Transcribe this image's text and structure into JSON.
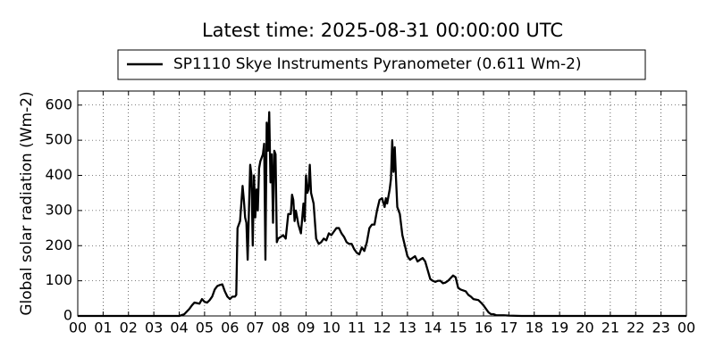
{
  "chart_data": {
    "type": "line",
    "title": "Latest time: 2025-08-31 00:00:00 UTC",
    "ylabel": "Global solar radiation (Wm-2)",
    "grid": true,
    "legend": "upper center",
    "xlim": [
      0,
      24
    ],
    "xticks": [
      {
        "value": 0,
        "label": "00"
      },
      {
        "value": 1,
        "label": "01"
      },
      {
        "value": 2,
        "label": "02"
      },
      {
        "value": 3,
        "label": "03"
      },
      {
        "value": 4,
        "label": "04"
      },
      {
        "value": 5,
        "label": "05"
      },
      {
        "value": 6,
        "label": "06"
      },
      {
        "value": 7,
        "label": "07"
      },
      {
        "value": 8,
        "label": "08"
      },
      {
        "value": 9,
        "label": "09"
      },
      {
        "value": 10,
        "label": "10"
      },
      {
        "value": 11,
        "label": "11"
      },
      {
        "value": 12,
        "label": "12"
      },
      {
        "value": 13,
        "label": "13"
      },
      {
        "value": 14,
        "label": "14"
      },
      {
        "value": 15,
        "label": "15"
      },
      {
        "value": 16,
        "label": "16"
      },
      {
        "value": 17,
        "label": "17"
      },
      {
        "value": 18,
        "label": "18"
      },
      {
        "value": 19,
        "label": "19"
      },
      {
        "value": 20,
        "label": "20"
      },
      {
        "value": 21,
        "label": "21"
      },
      {
        "value": 22,
        "label": "22"
      },
      {
        "value": 23,
        "label": "23"
      },
      {
        "value": 24,
        "label": "00"
      }
    ],
    "ylim": [
      0,
      640
    ],
    "yticks": [
      0,
      100,
      200,
      300,
      400,
      500,
      600
    ],
    "x": [
      0,
      4.0,
      4.2,
      4.4,
      4.5,
      4.6,
      4.8,
      4.9,
      5.0,
      5.1,
      5.2,
      5.3,
      5.4,
      5.5,
      5.6,
      5.7,
      5.8,
      5.9,
      6.0,
      6.1,
      6.2,
      6.25,
      6.3,
      6.4,
      6.45,
      6.5,
      6.55,
      6.6,
      6.65,
      6.7,
      6.75,
      6.8,
      6.85,
      6.9,
      6.95,
      7.0,
      7.05,
      7.1,
      7.15,
      7.2,
      7.3,
      7.35,
      7.4,
      7.45,
      7.5,
      7.55,
      7.6,
      7.65,
      7.7,
      7.75,
      7.8,
      7.85,
      7.9,
      8.0,
      8.1,
      8.2,
      8.3,
      8.4,
      8.45,
      8.5,
      8.55,
      8.6,
      8.7,
      8.8,
      8.9,
      8.95,
      9.0,
      9.05,
      9.1,
      9.15,
      9.2,
      9.3,
      9.4,
      9.5,
      9.6,
      9.7,
      9.8,
      9.9,
      10.0,
      10.1,
      10.2,
      10.3,
      10.4,
      10.5,
      10.6,
      10.7,
      10.8,
      10.9,
      11.0,
      11.1,
      11.2,
      11.3,
      11.4,
      11.5,
      11.6,
      11.7,
      11.8,
      11.9,
      12.0,
      12.1,
      12.15,
      12.2,
      12.3,
      12.35,
      12.4,
      12.45,
      12.5,
      12.55,
      12.6,
      12.7,
      12.8,
      12.9,
      13.0,
      13.1,
      13.2,
      13.3,
      13.4,
      13.5,
      13.6,
      13.7,
      13.8,
      13.9,
      14.0,
      14.1,
      14.2,
      14.3,
      14.4,
      14.5,
      14.6,
      14.8,
      14.9,
      15.0,
      15.1,
      15.3,
      15.4,
      15.5,
      15.6,
      15.8,
      15.9,
      16.0,
      16.1,
      16.2,
      16.3,
      16.4,
      16.5,
      16.8,
      17.0,
      17.5,
      24
    ],
    "series": [
      {
        "name": "SP1110 Skye Instruments Pyranometer (0.611 Wm-2)",
        "color": "#000000",
        "values": [
          0,
          0,
          5,
          20,
          30,
          38,
          35,
          48,
          40,
          38,
          45,
          55,
          75,
          85,
          88,
          90,
          70,
          55,
          48,
          55,
          55,
          60,
          250,
          270,
          320,
          370,
          330,
          280,
          265,
          160,
          300,
          430,
          400,
          200,
          400,
          280,
          360,
          300,
          420,
          440,
          460,
          490,
          160,
          550,
          470,
          580,
          380,
          460,
          265,
          470,
          460,
          210,
          220,
          225,
          230,
          220,
          290,
          290,
          345,
          330,
          270,
          300,
          260,
          235,
          320,
          270,
          400,
          350,
          360,
          430,
          350,
          320,
          220,
          205,
          210,
          220,
          215,
          235,
          230,
          240,
          250,
          250,
          235,
          225,
          210,
          205,
          205,
          190,
          180,
          175,
          195,
          185,
          210,
          250,
          260,
          260,
          300,
          330,
          335,
          310,
          335,
          320,
          360,
          390,
          500,
          410,
          480,
          390,
          310,
          290,
          230,
          200,
          170,
          160,
          165,
          170,
          155,
          160,
          165,
          155,
          130,
          105,
          100,
          97,
          100,
          100,
          93,
          95,
          100,
          115,
          110,
          80,
          75,
          70,
          60,
          55,
          48,
          45,
          38,
          30,
          20,
          10,
          5,
          5,
          2,
          2,
          1,
          0,
          0
        ]
      }
    ]
  }
}
